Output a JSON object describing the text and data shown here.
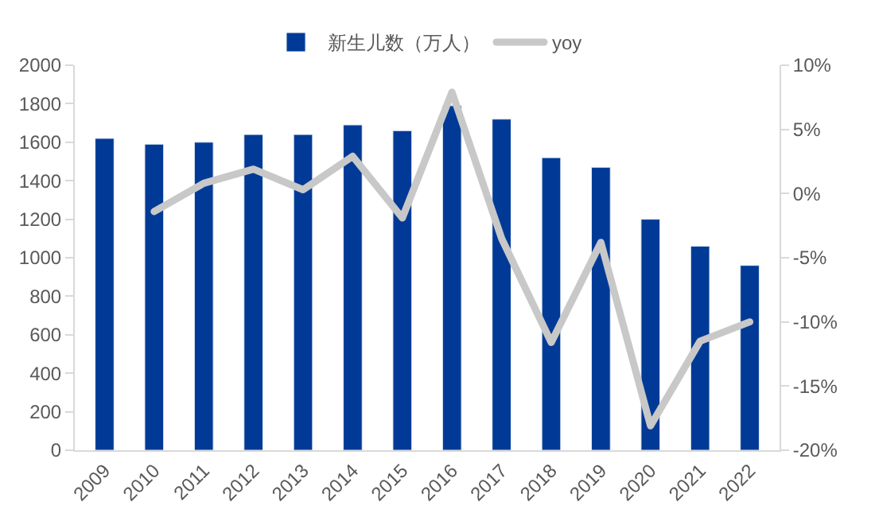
{
  "chart_data": {
    "type": "bar",
    "categories": [
      "2009",
      "2010",
      "2011",
      "2012",
      "2013",
      "2014",
      "2015",
      "2016",
      "2017",
      "2018",
      "2019",
      "2020",
      "2021",
      "2022"
    ],
    "series": [
      {
        "name": "新生儿数（万人）",
        "color": "#003a96",
        "values": [
          1620,
          1590,
          1600,
          1640,
          1640,
          1690,
          1660,
          1790,
          1720,
          1520,
          1470,
          1200,
          1060,
          960
        ]
      },
      {
        "name": "yoy",
        "type": "line",
        "axis": "y2",
        "color": "#c8c8c8",
        "values": [
          null,
          -1.4,
          0.8,
          1.9,
          0.3,
          2.9,
          -1.9,
          7.9,
          -3.5,
          -11.6,
          -3.8,
          -18.1,
          -11.5,
          -10.0
        ]
      }
    ],
    "ylim": [
      0,
      2000
    ],
    "yticks": [
      0,
      200,
      400,
      600,
      800,
      1000,
      1200,
      1400,
      1600,
      1800,
      2000
    ],
    "y2lim": [
      -20,
      10
    ],
    "y2ticks": [
      {
        "value": -20,
        "label": "-20%"
      },
      {
        "value": -15,
        "label": "-15%"
      },
      {
        "value": -10,
        "label": "-10%"
      },
      {
        "value": -5,
        "label": "-5%"
      },
      {
        "value": 0,
        "label": "0%"
      },
      {
        "value": 5,
        "label": "5%"
      },
      {
        "value": 10,
        "label": "10%"
      }
    ],
    "legend": "top",
    "marker": "none"
  }
}
